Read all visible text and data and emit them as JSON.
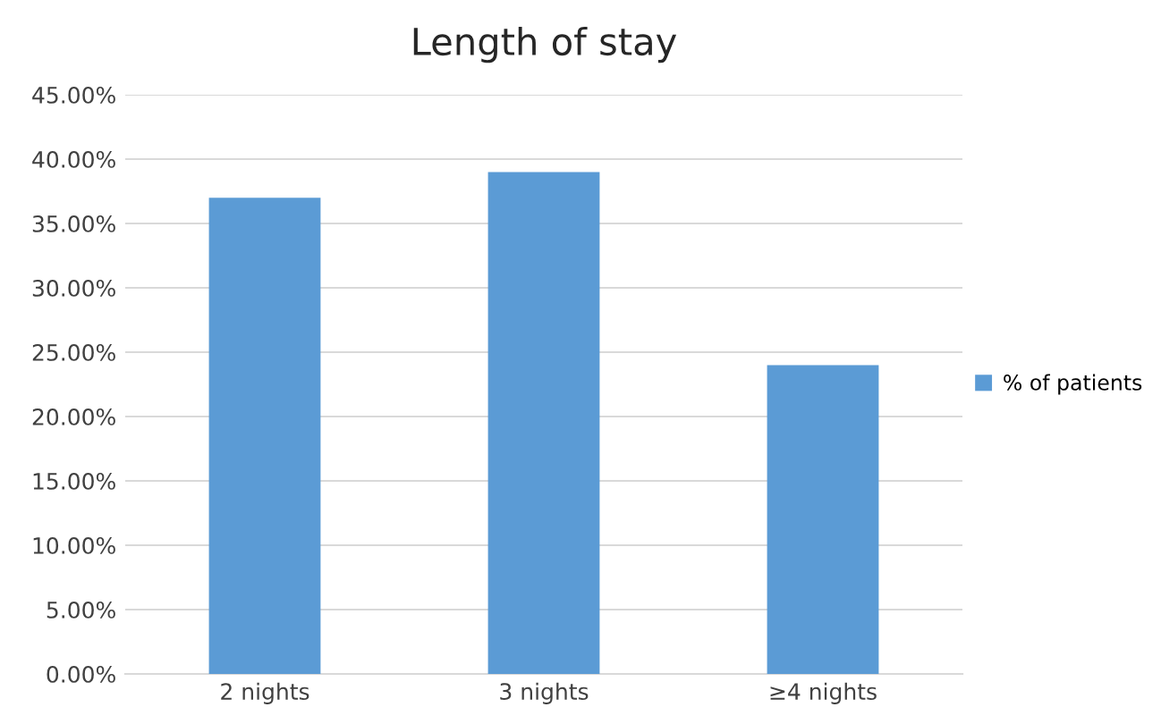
{
  "chart_data": {
    "type": "bar",
    "title": "Length of stay",
    "categories": [
      "2 nights",
      "3 nights",
      "≥4 nights"
    ],
    "series": [
      {
        "name": "% of patients",
        "color": "#5b9bd5",
        "values": [
          37.0,
          39.0,
          24.0
        ]
      }
    ],
    "ylim": [
      0,
      45
    ],
    "yticks": [
      {
        "value": 0,
        "label": "0.00%"
      },
      {
        "value": 5,
        "label": "5.00%"
      },
      {
        "value": 10,
        "label": "10.00%"
      },
      {
        "value": 15,
        "label": "15.00%"
      },
      {
        "value": 20,
        "label": "20.00%"
      },
      {
        "value": 25,
        "label": "25.00%"
      },
      {
        "value": 30,
        "label": "30.00%"
      },
      {
        "value": 35,
        "label": "35.00%"
      },
      {
        "value": 40,
        "label": "40.00%"
      },
      {
        "value": 45,
        "label": "45.00%"
      }
    ],
    "grid": "y",
    "legend": "right"
  }
}
